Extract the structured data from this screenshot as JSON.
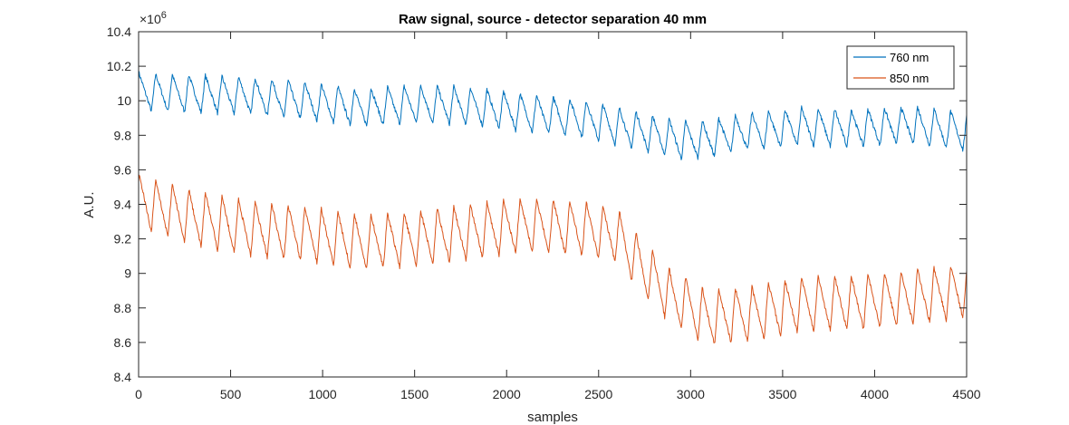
{
  "chart_data": {
    "type": "line",
    "title": "Raw signal, source - detector separation 40 mm",
    "xlabel": "samples",
    "ylabel": "A.U.",
    "exponent_label": "×10",
    "exponent_power": "6",
    "xlim": [
      0,
      4500
    ],
    "ylim": [
      8.4,
      10.4
    ],
    "xticks": [
      0,
      500,
      1000,
      1500,
      2000,
      2500,
      3000,
      3500,
      4000,
      4500
    ],
    "yticks": [
      8.4,
      8.6,
      8.8,
      9,
      9.2,
      9.4,
      9.6,
      9.8,
      10,
      10.2,
      10.4
    ],
    "xtick_labels": [
      "0",
      "500",
      "1000",
      "1500",
      "2000",
      "2500",
      "3000",
      "3500",
      "4000",
      "4500"
    ],
    "ytick_labels": [
      "8.4",
      "8.6",
      "8.8",
      "9",
      "9.2",
      "9.4",
      "9.6",
      "9.8",
      "10",
      "10.2",
      "10.4"
    ],
    "legend_position": "top-right",
    "grid": false,
    "series": [
      {
        "name": "760 nm",
        "color": "#0072BD",
        "period": 90,
        "amplitude": 0.22,
        "baseline": {
          "x": [
            0,
            300,
            600,
            900,
            1200,
            1500,
            1800,
            2100,
            2400,
            2700,
            2950,
            3100,
            3300,
            3600,
            3900,
            4200,
            4500
          ],
          "y": [
            10.05,
            10.04,
            10.03,
            10.0,
            9.96,
            9.98,
            9.97,
            9.93,
            9.9,
            9.83,
            9.77,
            9.78,
            9.82,
            9.85,
            9.84,
            9.86,
            9.82
          ]
        }
      },
      {
        "name": "850 nm",
        "color": "#D95319",
        "period": 90,
        "amplitude": 0.32,
        "baseline": {
          "x": [
            0,
            300,
            600,
            900,
            1200,
            1500,
            1800,
            2100,
            2400,
            2600,
            2750,
            2900,
            3100,
            3300,
            3600,
            3900,
            4200,
            4500
          ],
          "y": [
            9.42,
            9.32,
            9.26,
            9.23,
            9.18,
            9.2,
            9.24,
            9.28,
            9.26,
            9.22,
            9.02,
            8.86,
            8.74,
            8.76,
            8.82,
            8.83,
            8.86,
            8.9
          ]
        }
      }
    ]
  }
}
